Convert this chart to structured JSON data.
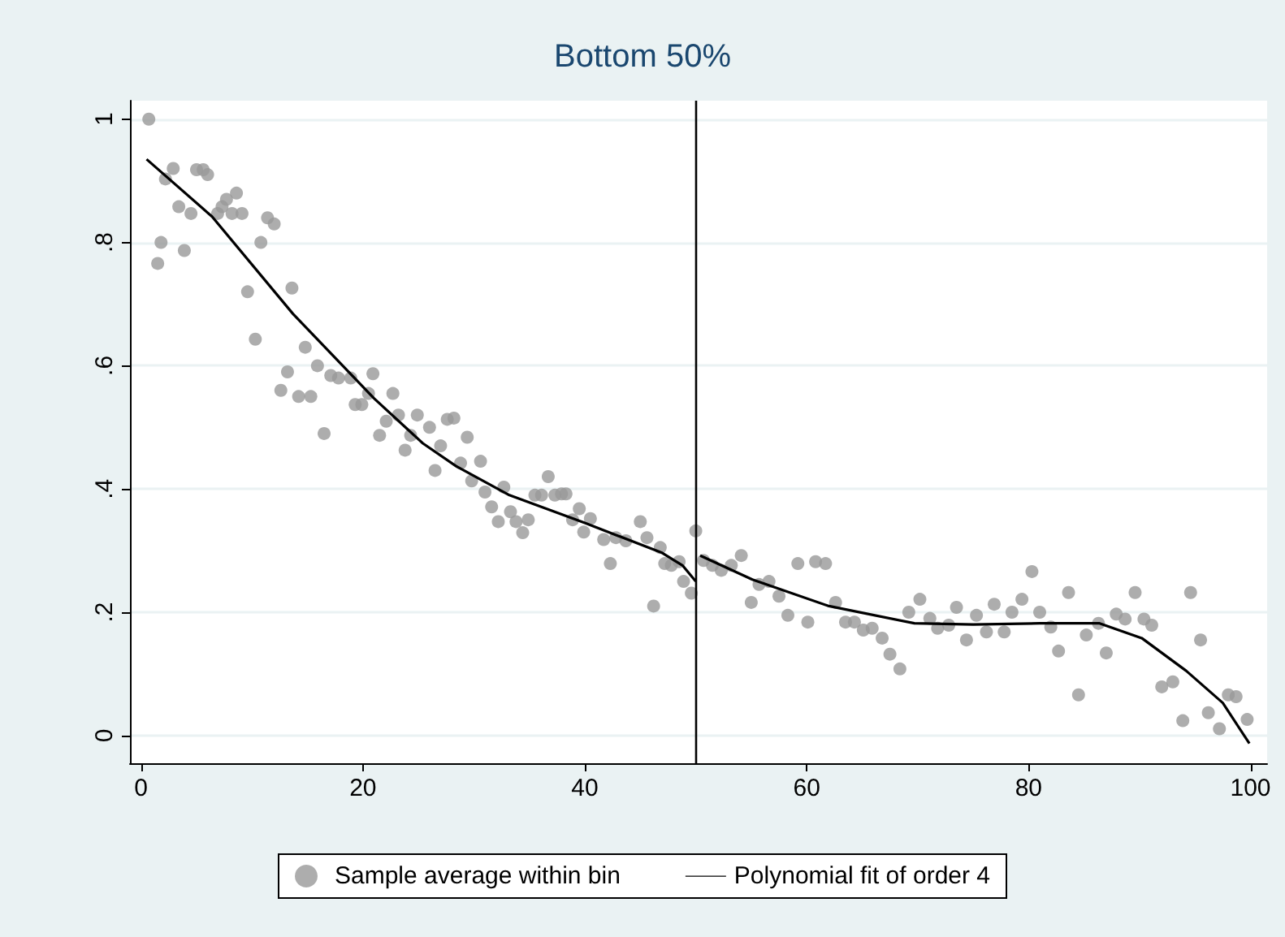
{
  "chart_data": {
    "type": "scatter",
    "title": "Bottom 50%",
    "xlim": [
      -1,
      101.5
    ],
    "ylim": [
      -0.045,
      1.03
    ],
    "xticks": [
      0,
      20,
      40,
      60,
      80,
      100
    ],
    "yticks": [
      {
        "value": 0,
        "label": "0"
      },
      {
        "value": 0.2,
        "label": ".2"
      },
      {
        "value": 0.4,
        "label": ".4"
      },
      {
        "value": 0.6,
        "label": ".6"
      },
      {
        "value": 0.8,
        "label": ".8"
      },
      {
        "value": 1,
        "label": "1"
      }
    ],
    "grid": "y",
    "legend": "bottom",
    "marker": "circle",
    "series": [
      {
        "name": "Sample average within bin",
        "type": "scatter",
        "color": "#999999",
        "x": [
          0.7,
          1.5,
          1.8,
          2.2,
          2.9,
          3.4,
          3.9,
          4.5,
          5.0,
          5.6,
          6.0,
          6.9,
          7.3,
          7.7,
          8.2,
          8.6,
          9.1,
          9.6,
          10.3,
          10.8,
          11.4,
          12.0,
          12.6,
          13.2,
          13.6,
          14.2,
          14.8,
          15.3,
          15.9,
          16.5,
          17.1,
          17.8,
          18.9,
          19.3,
          19.9,
          20.5,
          20.9,
          21.5,
          22.1,
          22.7,
          23.2,
          23.8,
          24.3,
          24.9,
          26.0,
          26.5,
          27.0,
          27.6,
          28.2,
          28.8,
          29.4,
          29.8,
          30.6,
          31.0,
          31.6,
          32.2,
          32.7,
          33.3,
          33.8,
          34.4,
          34.9,
          35.5,
          36.1,
          36.7,
          37.3,
          37.9,
          38.3,
          38.9,
          39.5,
          39.9,
          40.5,
          41.7,
          42.3,
          42.8,
          43.7,
          45.0,
          45.6,
          46.2,
          46.8,
          47.2,
          47.8,
          48.5,
          48.9,
          49.6,
          50.0,
          50.7,
          51.5,
          52.3,
          53.2,
          54.1,
          55.0,
          55.7,
          56.6,
          57.5,
          58.3,
          59.2,
          60.1,
          60.8,
          61.7,
          62.6,
          63.5,
          64.3,
          65.1,
          65.9,
          66.8,
          67.5,
          68.4,
          69.2,
          70.2,
          71.1,
          71.8,
          72.8,
          73.5,
          74.4,
          75.3,
          76.2,
          76.9,
          77.8,
          78.5,
          79.4,
          80.3,
          81.0,
          82.0,
          82.7,
          83.6,
          84.5,
          85.2,
          86.3,
          87.0,
          87.9,
          88.7,
          89.6,
          90.4,
          91.1,
          92.0,
          93.0,
          93.9,
          94.6,
          95.5,
          96.2,
          97.2,
          98.0,
          98.7,
          99.7
        ],
        "values": [
          1.0,
          0.766,
          0.8,
          0.903,
          0.92,
          0.858,
          0.787,
          0.847,
          0.918,
          0.918,
          0.91,
          0.847,
          0.858,
          0.87,
          0.847,
          0.88,
          0.847,
          0.72,
          0.643,
          0.8,
          0.84,
          0.83,
          0.56,
          0.59,
          0.726,
          0.55,
          0.63,
          0.55,
          0.6,
          0.49,
          0.584,
          0.58,
          0.58,
          0.537,
          0.537,
          0.555,
          0.587,
          0.487,
          0.51,
          0.555,
          0.52,
          0.463,
          0.487,
          0.52,
          0.5,
          0.43,
          0.47,
          0.513,
          0.515,
          0.442,
          0.484,
          0.413,
          0.445,
          0.395,
          0.371,
          0.347,
          0.403,
          0.363,
          0.347,
          0.329,
          0.35,
          0.39,
          0.39,
          0.42,
          0.39,
          0.392,
          0.392,
          0.35,
          0.368,
          0.33,
          0.352,
          0.318,
          0.279,
          0.321,
          0.316,
          0.347,
          0.321,
          0.21,
          0.305,
          0.279,
          0.276,
          0.282,
          0.25,
          0.231,
          0.332,
          0.284,
          0.276,
          0.268,
          0.276,
          0.292,
          0.216,
          0.245,
          0.25,
          0.226,
          0.195,
          0.279,
          0.184,
          0.282,
          0.279,
          0.216,
          0.184,
          0.184,
          0.171,
          0.174,
          0.158,
          0.132,
          0.108,
          0.2,
          0.221,
          0.19,
          0.174,
          0.179,
          0.208,
          0.155,
          0.195,
          0.168,
          0.213,
          0.168,
          0.2,
          0.221,
          0.266,
          0.2,
          0.176,
          0.137,
          0.232,
          0.066,
          0.163,
          0.182,
          0.134,
          0.197,
          0.189,
          0.232,
          0.189,
          0.179,
          0.079,
          0.087,
          0.024,
          0.232,
          0.155,
          0.037,
          0.011,
          0.066,
          0.063,
          0.026
        ]
      },
      {
        "name": "Polynomial fit of order 4",
        "type": "line",
        "color": "#000000",
        "marker": "none",
        "x": [
          0.5,
          6.4,
          13.7,
          21.0,
          25.4,
          28.4,
          33.2,
          40.0,
          43.0,
          46.9,
          48.8,
          50.0,
          50.2,
          50.4,
          55.1,
          62.0,
          69.7,
          75.0,
          81.0,
          86.4,
          90.2,
          94.2,
          97.5,
          99.9
        ],
        "values": [
          0.935,
          0.842,
          0.684,
          0.547,
          0.474,
          0.437,
          0.39,
          0.345,
          0.324,
          0.297,
          0.276,
          0.25,
          null,
          0.292,
          0.253,
          0.21,
          0.182,
          0.18,
          0.182,
          0.182,
          0.158,
          0.105,
          0.053,
          -0.013
        ]
      }
    ],
    "ref_lines": [
      {
        "axis": "x",
        "value": 50,
        "color": "#000000"
      }
    ]
  }
}
